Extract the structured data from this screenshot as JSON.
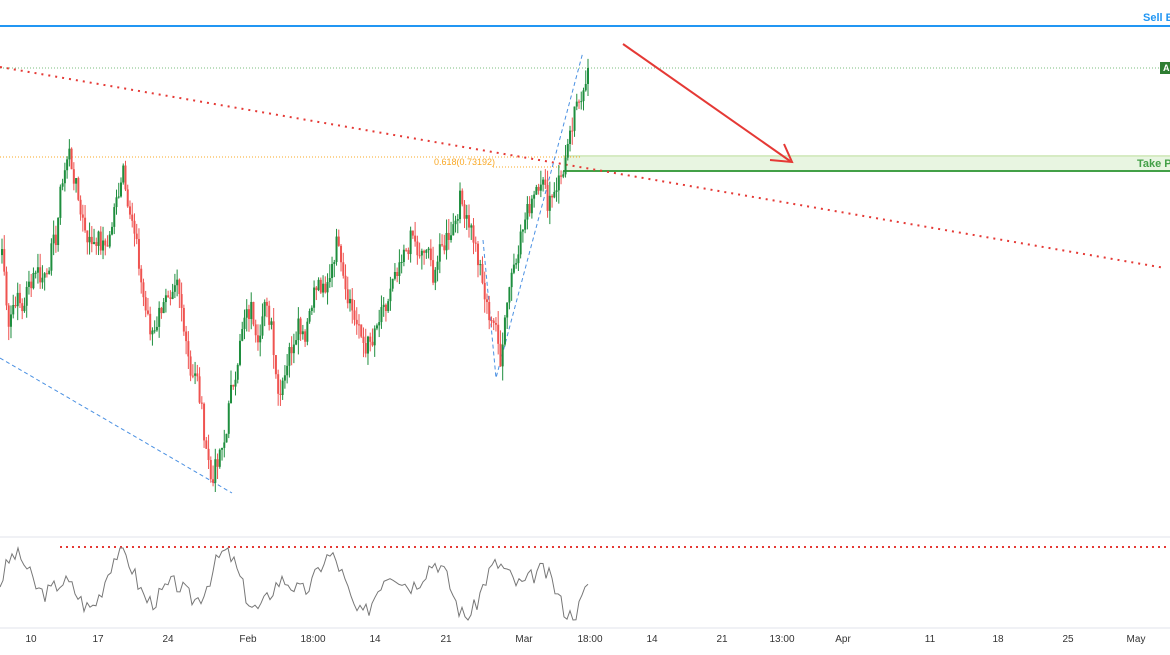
{
  "chart_data": {
    "type": "candlestick",
    "title": "",
    "x_ticks": [
      "10",
      "17",
      "24",
      "Feb",
      "18:00",
      "14",
      "21",
      "Mar",
      "18:00",
      "14",
      "21",
      "13:00",
      "Apr",
      "11",
      "18",
      "25",
      "May"
    ],
    "labels": {
      "sell_entry": "Sell E",
      "fib": "0.618(0.73192)",
      "take_profit": "Take P",
      "price_tag": "A"
    },
    "colors": {
      "up": "#26a69a",
      "up_strong": "#1e8e3e",
      "down": "#ef5350",
      "sell_line": "#2196f3",
      "take_profit": "#43a047",
      "take_profit_zone": "#e8f5e1",
      "trendline": "#e53935",
      "fib": "#f9a825",
      "pattern": "#4a90e2",
      "oscillator": "#777777",
      "osc_level": "#e53935"
    },
    "price_path": [
      0.719,
      0.713,
      0.715,
      0.714,
      0.716,
      0.7175,
      0.7165,
      0.718,
      0.72,
      0.725,
      0.727,
      0.724,
      0.7215,
      0.7195,
      0.72,
      0.719,
      0.72,
      0.723,
      0.726,
      0.722,
      0.719,
      0.715,
      0.712,
      0.713,
      0.715,
      0.714,
      0.716,
      0.713,
      0.709,
      0.708,
      0.704,
      0.7,
      0.701,
      0.703,
      0.707,
      0.71,
      0.713,
      0.714,
      0.712,
      0.714,
      0.713,
      0.707,
      0.709,
      0.711,
      0.713,
      0.712,
      0.715,
      0.716,
      0.715,
      0.718,
      0.72,
      0.716,
      0.714,
      0.712,
      0.711,
      0.711,
      0.713,
      0.714,
      0.716,
      0.717,
      0.719,
      0.72,
      0.718,
      0.719,
      0.717,
      0.7185,
      0.72,
      0.721,
      0.723,
      0.722,
      0.72,
      0.717,
      0.714,
      0.713,
      0.71,
      0.715,
      0.718,
      0.72,
      0.722,
      0.724,
      0.725,
      0.723,
      0.724,
      0.725,
      0.727,
      0.73,
      0.732,
      0.734
    ]
  }
}
